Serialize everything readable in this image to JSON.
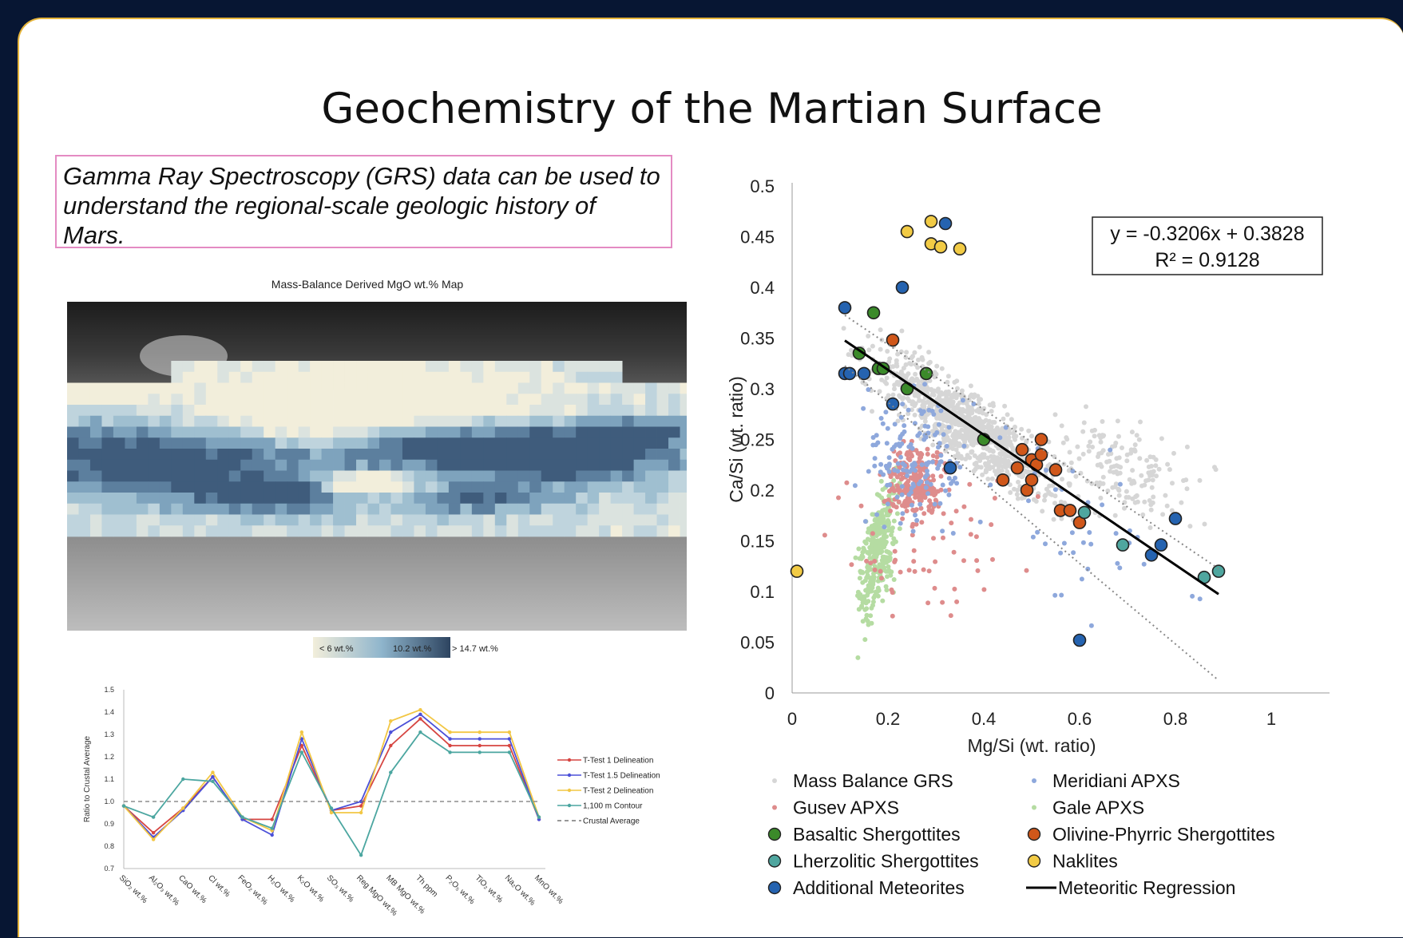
{
  "slide": {
    "title": "Geochemistry of the Martian Surface",
    "intro_text": "Gamma Ray Spectroscopy (GRS) data can be used to understand the regional-scale geologic history of Mars."
  },
  "map": {
    "title": "Mass-Balance Derived MgO wt.% Map",
    "colorbar_labels": [
      "< 6 wt.%",
      "10.2 wt.%",
      "> 14.7 wt.%"
    ]
  },
  "scatter": {
    "equation": "y = -0.3206x + 0.3828",
    "r2": "R² = 0.9128",
    "legend": [
      {
        "label": "Mass Balance GRS",
        "kind": "dot",
        "color": "#d6d6d6"
      },
      {
        "label": "Meridiani APXS",
        "kind": "dot",
        "color": "#8ea8dc"
      },
      {
        "label": "Gusev APXS",
        "kind": "dot",
        "color": "#de8c8c"
      },
      {
        "label": "Gale APXS",
        "kind": "dot",
        "color": "#b5dca2"
      },
      {
        "label": "Basaltic Shergottites",
        "kind": "circle",
        "color": "#3b8a2a"
      },
      {
        "label": "Olivine-Phyrric Shergottites",
        "kind": "circle",
        "color": "#d0571a"
      },
      {
        "label": "Lherzolitic Shergottites",
        "kind": "circle",
        "color": "#4fa69f"
      },
      {
        "label": "Naklites",
        "kind": "circle",
        "color": "#f2cb45"
      },
      {
        "label": "Additional Meteorites",
        "kind": "circle",
        "color": "#2563b0"
      },
      {
        "label": "Meteoritic Regression",
        "kind": "line",
        "color": "#000000"
      }
    ]
  },
  "chart_data": [
    {
      "type": "scatter",
      "xlabel": "Mg/Si (wt. ratio)",
      "ylabel": "Ca/Si (wt. ratio)",
      "xlim": [
        0,
        1.1
      ],
      "ylim": [
        0,
        0.5
      ],
      "xticks": [
        0,
        0.2,
        0.4,
        0.6,
        0.8,
        1
      ],
      "xtick_labels": [
        "0",
        "0.2",
        "0.4",
        "0.6",
        "0.8",
        "1"
      ],
      "yticks": [
        0,
        0.05,
        0.1,
        0.15,
        0.2,
        0.25,
        0.3,
        0.35,
        0.4,
        0.45,
        0.5
      ],
      "ytick_labels": [
        "0",
        "0.05",
        "0.1",
        "0.15",
        "0.2",
        "0.25",
        "0.3",
        "0.35",
        "0.4",
        "0.45",
        "0.5"
      ],
      "regression": {
        "slope": -0.3206,
        "intercept": 0.3828,
        "x_range": [
          0.11,
          0.89
        ]
      },
      "series": [
        {
          "name": "Basaltic Shergottites",
          "points": [
            [
              0.14,
              0.335
            ],
            [
              0.17,
              0.375
            ],
            [
              0.18,
              0.32
            ],
            [
              0.19,
              0.32
            ],
            [
              0.24,
              0.3
            ],
            [
              0.28,
              0.315
            ],
            [
              0.4,
              0.25
            ]
          ]
        },
        {
          "name": "Olivine-Phyrric Shergottites",
          "points": [
            [
              0.21,
              0.348
            ],
            [
              0.44,
              0.21
            ],
            [
              0.47,
              0.222
            ],
            [
              0.48,
              0.24
            ],
            [
              0.49,
              0.2
            ],
            [
              0.5,
              0.21
            ],
            [
              0.5,
              0.23
            ],
            [
              0.51,
              0.225
            ],
            [
              0.52,
              0.25
            ],
            [
              0.52,
              0.235
            ],
            [
              0.55,
              0.22
            ],
            [
              0.56,
              0.18
            ],
            [
              0.58,
              0.18
            ],
            [
              0.6,
              0.168
            ]
          ]
        },
        {
          "name": "Lherzolitic Shergottites",
          "points": [
            [
              0.61,
              0.178
            ],
            [
              0.69,
              0.146
            ],
            [
              0.86,
              0.114
            ],
            [
              0.89,
              0.12
            ]
          ]
        },
        {
          "name": "Naklites",
          "points": [
            [
              0.01,
              0.12
            ],
            [
              0.24,
              0.455
            ],
            [
              0.29,
              0.465
            ],
            [
              0.29,
              0.443
            ],
            [
              0.31,
              0.44
            ],
            [
              0.35,
              0.438
            ]
          ]
        },
        {
          "name": "Additional Meteorites",
          "points": [
            [
              0.11,
              0.38
            ],
            [
              0.11,
              0.315
            ],
            [
              0.12,
              0.315
            ],
            [
              0.15,
              0.315
            ],
            [
              0.21,
              0.285
            ],
            [
              0.23,
              0.4
            ],
            [
              0.32,
              0.463
            ],
            [
              0.33,
              0.222
            ],
            [
              0.6,
              0.052
            ],
            [
              0.75,
              0.136
            ],
            [
              0.77,
              0.146
            ],
            [
              0.8,
              0.172
            ]
          ]
        }
      ]
    },
    {
      "type": "line",
      "ylabel": "Ratio to Crustal Average",
      "ylim": [
        0.7,
        1.5
      ],
      "yticks": [
        0.7,
        0.8,
        0.9,
        1.0,
        1.1,
        1.2,
        1.3,
        1.4,
        1.5
      ],
      "ytick_labels": [
        "0.7",
        "0.8",
        "0.9",
        "1.0",
        "1.1",
        "1.2",
        "1.3",
        "1.4",
        "1.5"
      ],
      "categories": [
        "SiO2 wt.%",
        "Al2O3 wt.%",
        "CaO wt.%",
        "Cl wt.%",
        "FeO2 wt.%",
        "H2O wt.%",
        "K2O wt.%",
        "SO3 wt.%",
        "Reg MgO wt.%",
        "MB MgO wt.%",
        "Th ppm",
        "P2O5 wt.%",
        "TiO2 wt.%",
        "Na2O wt.%",
        "MnO wt.%"
      ],
      "category_display": [
        "SiO₂ wt.%",
        "Al₂O₃ wt.%",
        "CaO wt.%",
        "Cl wt.%",
        "FeO₂ wt.%",
        "H₂O wt.%",
        "K₂O wt.%",
        "SO₃ wt.%",
        "Reg MgO wt.%",
        "MB MgO wt.%",
        "Th ppm",
        "P₂O₅ wt.%",
        "TiO₂ wt.%",
        "Na₂O wt.%",
        "MnO wt.%"
      ],
      "series": [
        {
          "name": "T-Test 1 Delineation",
          "color": "#d64541",
          "dash": "",
          "values": [
            0.98,
            0.86,
            0.97,
            1.11,
            0.92,
            0.92,
            1.25,
            0.96,
            0.98,
            1.25,
            1.37,
            1.25,
            1.25,
            1.25,
            0.92
          ]
        },
        {
          "name": "T-Test 1.5 Delineation",
          "color": "#4b50d8",
          "dash": "",
          "values": [
            0.98,
            0.84,
            0.96,
            1.11,
            0.92,
            0.85,
            1.28,
            0.96,
            1.0,
            1.31,
            1.39,
            1.28,
            1.28,
            1.28,
            0.92
          ]
        },
        {
          "name": "T-Test 2 Delineation",
          "color": "#f2c744",
          "dash": "",
          "values": [
            0.98,
            0.83,
            0.97,
            1.13,
            0.93,
            0.87,
            1.31,
            0.95,
            0.95,
            1.36,
            1.41,
            1.31,
            1.31,
            1.31,
            0.93
          ]
        },
        {
          "name": "1,100 m Contour",
          "color": "#4ba6a0",
          "dash": "",
          "values": [
            0.98,
            0.93,
            1.1,
            1.09,
            0.93,
            0.88,
            1.22,
            0.97,
            0.76,
            1.13,
            1.31,
            1.22,
            1.22,
            1.22,
            0.93
          ]
        },
        {
          "name": "Crustal Average",
          "color": "#777777",
          "dash": "5,4",
          "values": [
            1,
            1,
            1,
            1,
            1,
            1,
            1,
            1,
            1,
            1,
            1,
            1,
            1,
            1,
            1
          ]
        }
      ]
    }
  ]
}
